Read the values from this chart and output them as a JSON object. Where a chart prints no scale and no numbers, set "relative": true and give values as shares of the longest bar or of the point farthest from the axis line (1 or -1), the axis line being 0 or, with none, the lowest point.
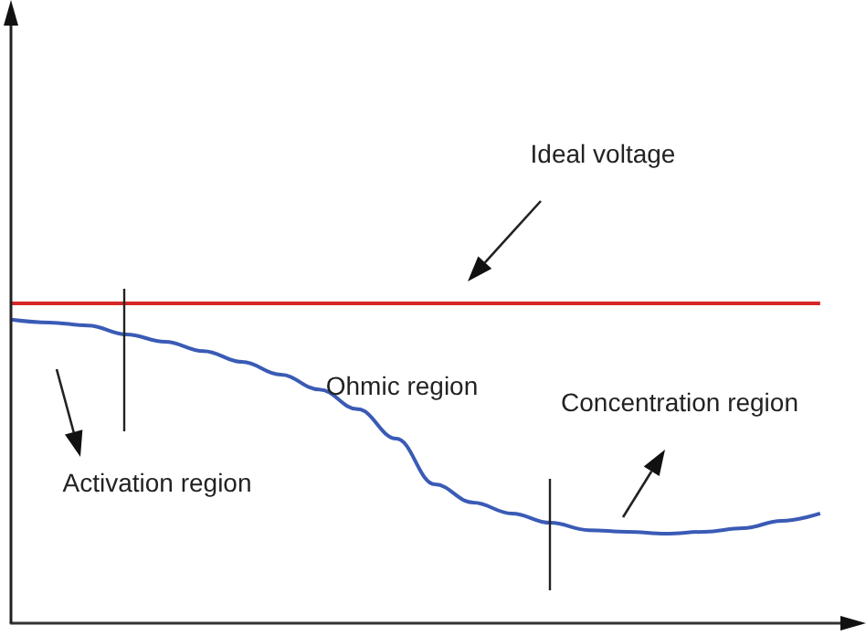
{
  "chart_data": {
    "type": "line",
    "relative": true,
    "tick_labels": false,
    "marker": "none",
    "line_style": "solid",
    "categories": [
      null,
      null,
      null,
      null,
      null,
      null,
      null,
      null,
      null,
      null,
      null,
      null,
      null,
      null,
      null,
      null,
      null,
      null,
      null,
      null,
      null,
      null,
      null
    ],
    "series": [
      {
        "color": "#d62728",
        "values": [
          1,
          1,
          1,
          1,
          1,
          1,
          1,
          1,
          1,
          1,
          1,
          1,
          1,
          1,
          1,
          1,
          1,
          1,
          1,
          1,
          1,
          1,
          null
        ]
      },
      {
        "color": "#3a5bb5",
        "values": [
          0.949,
          0.94,
          0.931,
          0.903,
          0.88,
          0.851,
          0.817,
          0.777,
          0.731,
          0.669,
          0.577,
          0.434,
          0.377,
          0.343,
          0.314,
          0.291,
          0.286,
          0.28,
          0.286,
          0.297,
          0.32,
          0.343,
          null
        ]
      }
    ],
    "annotations": [
      "Ideal voltage",
      "Ohmic region",
      "Concentration region",
      "Activation region"
    ]
  }
}
